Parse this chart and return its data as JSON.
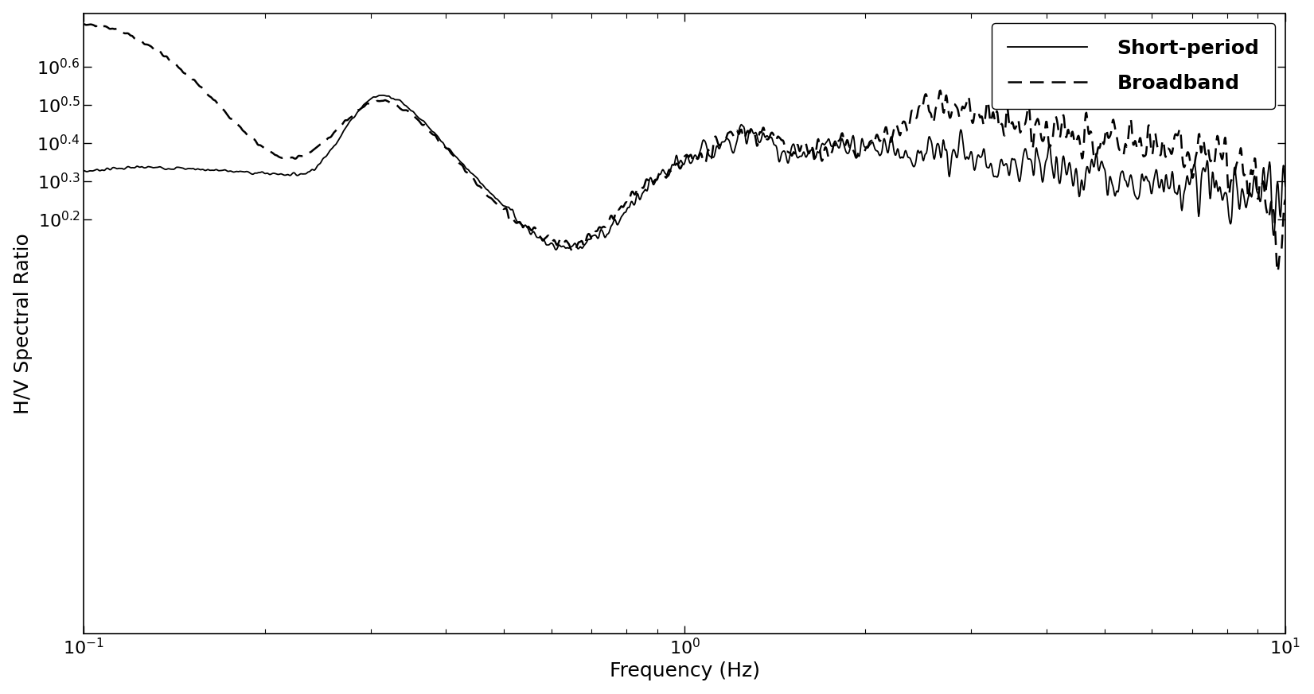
{
  "title": "",
  "xlabel": "Frequency (Hz)",
  "ylabel": "H/V Spectral Ratio",
  "xlim": [
    0.1,
    10
  ],
  "ylim": [
    0.13,
    5.5
  ],
  "solid_color": "black",
  "dashed_color": "black",
  "legend_solid": "Short-period",
  "legend_dashed": "Broadband",
  "solid_linewidth": 1.3,
  "dashed_linewidth": 1.8,
  "background": "white",
  "xlabel_fontsize": 18,
  "ylabel_fontsize": 18,
  "tick_fontsize": 16,
  "legend_fontsize": 18,
  "yticks_log": [
    0.2,
    0.3,
    0.4,
    0.5,
    0.6
  ],
  "xticks": [
    0.1,
    1.0,
    10.0
  ]
}
